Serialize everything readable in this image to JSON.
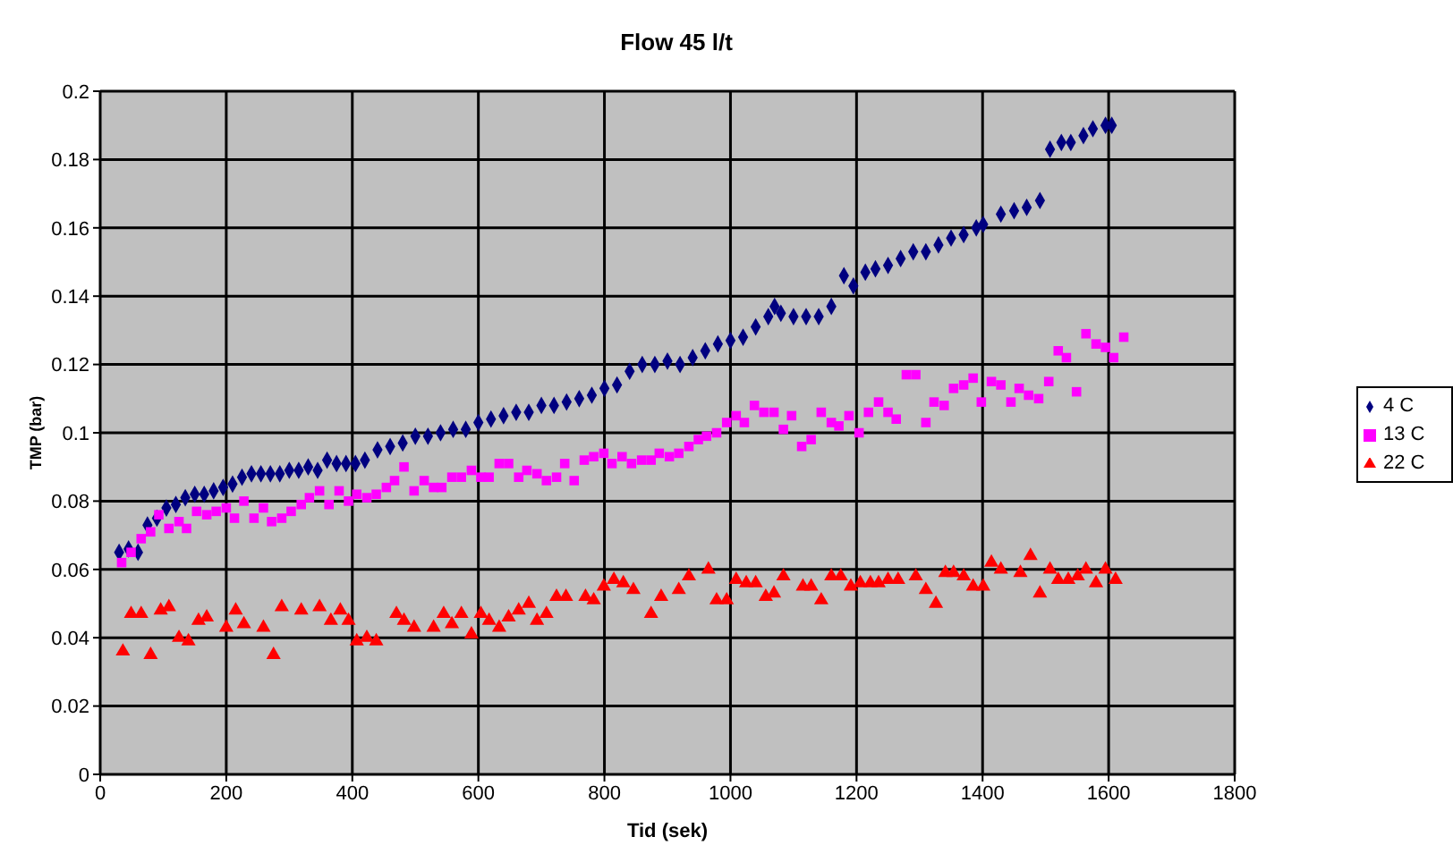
{
  "chart_data": {
    "type": "scatter",
    "title": "Flow 45 l/t",
    "xlabel": "Tid (sek)",
    "ylabel": "TMP (bar)",
    "xlim": [
      0,
      1800
    ],
    "xticks": [
      0,
      200,
      400,
      600,
      800,
      1000,
      1200,
      1400,
      1600,
      1800
    ],
    "ylim": [
      0,
      0.2
    ],
    "yticks": [
      0,
      0.02,
      0.04,
      0.06,
      0.08,
      0.1,
      0.12,
      0.14,
      0.16,
      0.18,
      0.2
    ],
    "grid": true,
    "legend": "right",
    "series": [
      {
        "name": "4 C",
        "color": "#000080",
        "marker": "diamond",
        "x": [
          30,
          45,
          60,
          75,
          90,
          105,
          120,
          135,
          150,
          165,
          180,
          195,
          210,
          225,
          240,
          255,
          270,
          285,
          300,
          315,
          330,
          345,
          360,
          375,
          390,
          405,
          420,
          440,
          460,
          480,
          500,
          520,
          540,
          560,
          580,
          600,
          620,
          640,
          660,
          680,
          700,
          720,
          740,
          760,
          780,
          800,
          820,
          840,
          860,
          880,
          900,
          920,
          940,
          960,
          980,
          1000,
          1020,
          1040,
          1060,
          1070,
          1080,
          1100,
          1120,
          1140,
          1160,
          1180,
          1195,
          1214,
          1230,
          1250,
          1270,
          1290,
          1310,
          1330,
          1350,
          1370,
          1390,
          1401,
          1429,
          1450,
          1470,
          1491,
          1507,
          1525,
          1540,
          1560,
          1575,
          1595,
          1605
        ],
        "values": [
          0.065,
          0.066,
          0.065,
          0.073,
          0.075,
          0.078,
          0.079,
          0.081,
          0.082,
          0.082,
          0.083,
          0.084,
          0.085,
          0.087,
          0.088,
          0.088,
          0.088,
          0.088,
          0.089,
          0.089,
          0.09,
          0.089,
          0.092,
          0.091,
          0.091,
          0.091,
          0.092,
          0.095,
          0.096,
          0.097,
          0.099,
          0.099,
          0.1,
          0.101,
          0.101,
          0.103,
          0.104,
          0.105,
          0.106,
          0.106,
          0.108,
          0.108,
          0.109,
          0.11,
          0.111,
          0.113,
          0.114,
          0.118,
          0.12,
          0.12,
          0.121,
          0.12,
          0.122,
          0.124,
          0.126,
          0.127,
          0.128,
          0.131,
          0.134,
          0.137,
          0.135,
          0.134,
          0.134,
          0.134,
          0.137,
          0.146,
          0.143,
          0.147,
          0.148,
          0.149,
          0.151,
          0.153,
          0.153,
          0.155,
          0.157,
          0.158,
          0.16,
          0.161,
          0.164,
          0.165,
          0.166,
          0.168,
          0.183,
          0.185,
          0.185,
          0.187,
          0.189,
          0.19,
          0.19
        ]
      },
      {
        "name": "13 C",
        "color": "#ff00ff",
        "marker": "square",
        "x": [
          34,
          49,
          65,
          80,
          93,
          109,
          125,
          137,
          153,
          169,
          184,
          200,
          213,
          228,
          244,
          259,
          272,
          288,
          303,
          319,
          332,
          348,
          363,
          379,
          394,
          407,
          423,
          438,
          454,
          467,
          482,
          498,
          514,
          529,
          542,
          558,
          573,
          589,
          604,
          617,
          633,
          648,
          664,
          677,
          693,
          708,
          724,
          737,
          752,
          768,
          783,
          799,
          812,
          828,
          843,
          859,
          874,
          887,
          903,
          918,
          934,
          949,
          962,
          978,
          994,
          1009,
          1022,
          1038,
          1053,
          1069,
          1084,
          1097,
          1113,
          1128,
          1144,
          1160,
          1172,
          1188,
          1204,
          1219,
          1235,
          1250,
          1263,
          1279,
          1294,
          1310,
          1323,
          1339,
          1354,
          1370,
          1385,
          1398,
          1414,
          1429,
          1445,
          1458,
          1473,
          1489,
          1505,
          1520,
          1533,
          1549,
          1564,
          1580,
          1595,
          1608,
          1624
        ],
        "values": [
          0.062,
          0.065,
          0.069,
          0.071,
          0.076,
          0.072,
          0.074,
          0.072,
          0.077,
          0.076,
          0.077,
          0.078,
          0.075,
          0.08,
          0.075,
          0.078,
          0.074,
          0.075,
          0.077,
          0.079,
          0.081,
          0.083,
          0.079,
          0.083,
          0.08,
          0.082,
          0.081,
          0.082,
          0.084,
          0.086,
          0.09,
          0.083,
          0.086,
          0.084,
          0.084,
          0.087,
          0.087,
          0.089,
          0.087,
          0.087,
          0.091,
          0.091,
          0.087,
          0.089,
          0.088,
          0.086,
          0.087,
          0.091,
          0.086,
          0.092,
          0.093,
          0.094,
          0.091,
          0.093,
          0.091,
          0.092,
          0.092,
          0.094,
          0.093,
          0.094,
          0.096,
          0.098,
          0.099,
          0.1,
          0.103,
          0.105,
          0.103,
          0.108,
          0.106,
          0.106,
          0.101,
          0.105,
          0.096,
          0.098,
          0.106,
          0.103,
          0.102,
          0.105,
          0.1,
          0.106,
          0.109,
          0.106,
          0.104,
          0.117,
          0.117,
          0.103,
          0.109,
          0.108,
          0.113,
          0.114,
          0.116,
          0.109,
          0.115,
          0.114,
          0.109,
          0.113,
          0.111,
          0.11,
          0.115,
          0.124,
          0.122,
          0.112,
          0.129,
          0.126,
          0.125,
          0.122,
          0.128
        ]
      },
      {
        "name": "22 C",
        "color": "#ff0000",
        "marker": "triangle",
        "x": [
          36,
          49,
          65,
          80,
          96,
          109,
          125,
          140,
          156,
          169,
          200,
          215,
          228,
          259,
          275,
          288,
          319,
          348,
          366,
          381,
          394,
          407,
          423,
          438,
          470,
          482,
          498,
          529,
          545,
          558,
          573,
          589,
          604,
          617,
          633,
          648,
          664,
          680,
          693,
          708,
          724,
          739,
          770,
          783,
          799,
          815,
          830,
          846,
          874,
          890,
          918,
          934,
          965,
          978,
          994,
          1009,
          1025,
          1040,
          1056,
          1069,
          1084,
          1115,
          1128,
          1144,
          1160,
          1175,
          1191,
          1206,
          1222,
          1235,
          1250,
          1266,
          1294,
          1310,
          1326,
          1341,
          1354,
          1370,
          1385,
          1401,
          1414,
          1429,
          1460,
          1476,
          1491,
          1507,
          1520,
          1536,
          1551,
          1564,
          1580,
          1595,
          1611
        ],
        "values": [
          0.036,
          0.047,
          0.047,
          0.035,
          0.048,
          0.049,
          0.04,
          0.039,
          0.045,
          0.046,
          0.043,
          0.048,
          0.044,
          0.043,
          0.035,
          0.049,
          0.048,
          0.049,
          0.045,
          0.048,
          0.045,
          0.039,
          0.04,
          0.039,
          0.047,
          0.045,
          0.043,
          0.043,
          0.047,
          0.044,
          0.047,
          0.041,
          0.047,
          0.045,
          0.043,
          0.046,
          0.048,
          0.05,
          0.045,
          0.047,
          0.052,
          0.052,
          0.052,
          0.051,
          0.055,
          0.057,
          0.056,
          0.054,
          0.047,
          0.052,
          0.054,
          0.058,
          0.06,
          0.051,
          0.051,
          0.057,
          0.056,
          0.056,
          0.052,
          0.053,
          0.058,
          0.055,
          0.055,
          0.051,
          0.058,
          0.058,
          0.055,
          0.056,
          0.056,
          0.056,
          0.057,
          0.057,
          0.058,
          0.054,
          0.05,
          0.059,
          0.059,
          0.058,
          0.055,
          0.055,
          0.062,
          0.06,
          0.059,
          0.064,
          0.053,
          0.06,
          0.057,
          0.057,
          0.058,
          0.06,
          0.056,
          0.06,
          0.057
        ]
      }
    ]
  }
}
